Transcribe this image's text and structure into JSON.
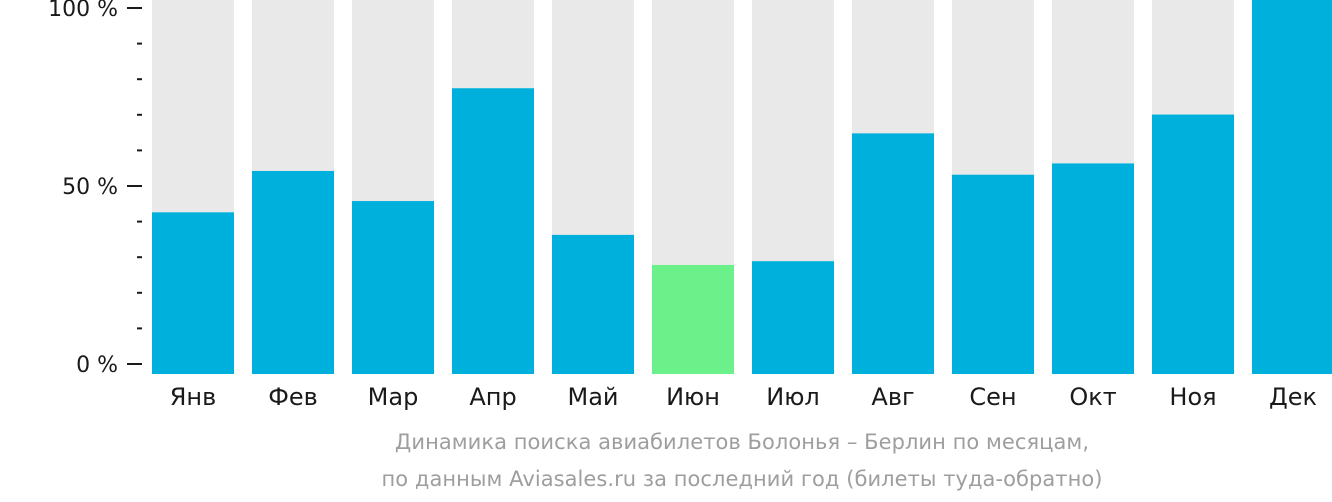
{
  "chart_data": {
    "type": "bar",
    "categories": [
      "Янв",
      "Фев",
      "Мар",
      "Апр",
      "Май",
      "Июн",
      "Июл",
      "Авг",
      "Сен",
      "Окт",
      "Ноя",
      "Дек"
    ],
    "values": [
      43,
      54,
      46,
      76,
      37,
      29,
      30,
      64,
      53,
      56,
      69,
      100
    ],
    "highlight_index": 5,
    "y_ticks": [
      "0 %",
      "50 %",
      "100 %"
    ],
    "ylim": [
      0,
      100
    ],
    "grid": false,
    "colors": {
      "bar": "#00b0dc",
      "highlight": "#6cf089",
      "track": "#e9e9e9",
      "axis": "#1a1a1a"
    }
  },
  "caption": {
    "line1": "Динамика поиска авиабилетов Болонья – Берлин по месяцам,",
    "line2": "по данным Aviasales.ru за последний год (билеты туда-обратно)"
  }
}
